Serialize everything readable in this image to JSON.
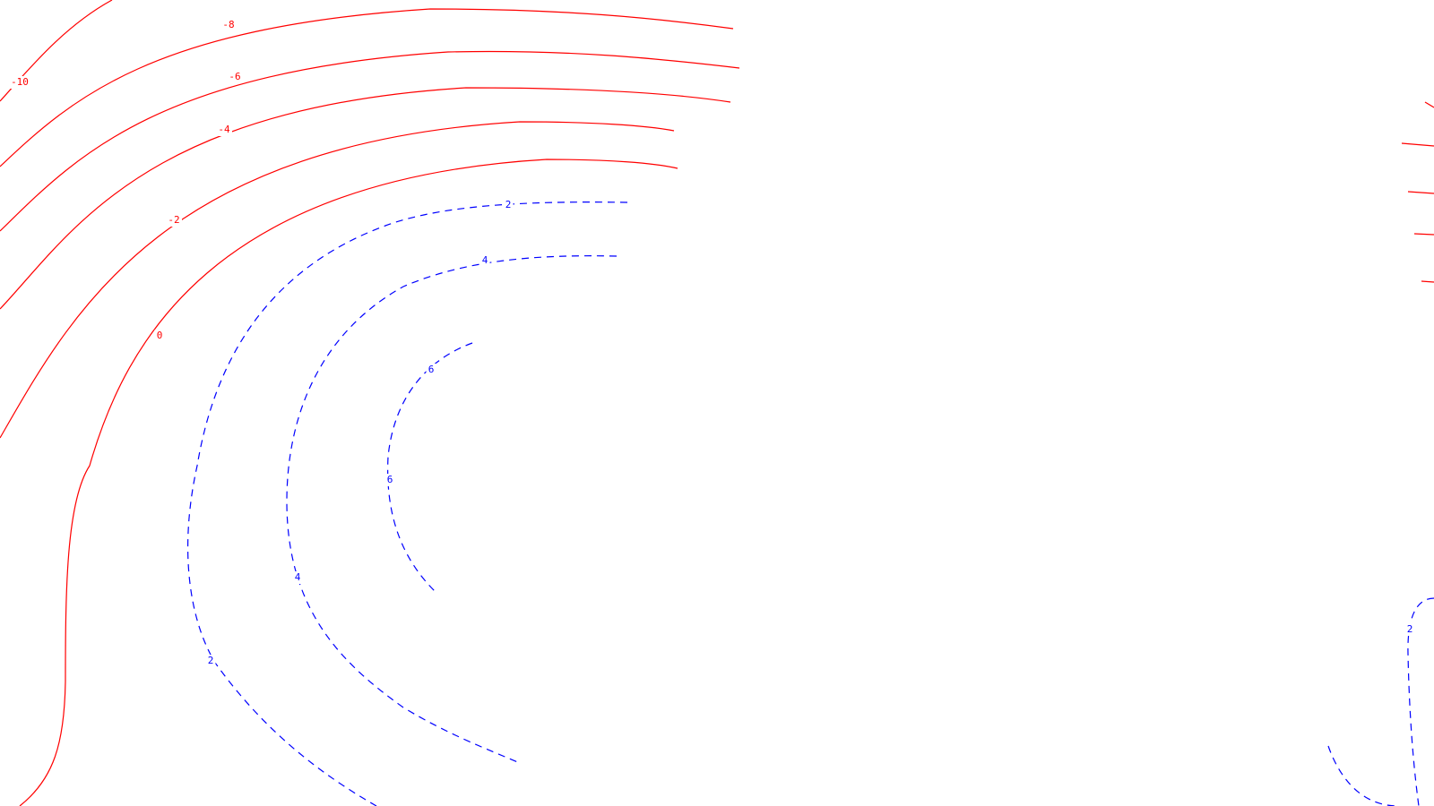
{
  "chart_data": {
    "type": "contour",
    "title": "",
    "xlabel": "",
    "ylabel": "",
    "grid": false,
    "legend": "none",
    "colors": {
      "negative": "#ff0000",
      "positive": "#0000ff"
    },
    "styles": {
      "negative": "solid",
      "positive": "dashed"
    },
    "levels": [
      {
        "id": "neg10",
        "value": -10,
        "label": "-10",
        "sign": "neg"
      },
      {
        "id": "neg8",
        "value": -8,
        "label": "-8",
        "sign": "neg"
      },
      {
        "id": "neg6",
        "value": -6,
        "label": "-6",
        "sign": "neg"
      },
      {
        "id": "neg4",
        "value": -4,
        "label": "-4",
        "sign": "neg"
      },
      {
        "id": "neg2",
        "value": -2,
        "label": "-2",
        "sign": "neg"
      },
      {
        "id": "zero",
        "value": 0,
        "label": "0",
        "sign": "neg"
      },
      {
        "id": "pos2",
        "value": 2,
        "label": "2",
        "sign": "pos"
      },
      {
        "id": "pos4",
        "value": 4,
        "label": "4",
        "sign": "pos"
      },
      {
        "id": "pos6",
        "value": 6,
        "label": "6",
        "sign": "pos"
      },
      {
        "id": "pos2-br",
        "value": 2,
        "label": "2",
        "sign": "pos"
      }
    ]
  }
}
